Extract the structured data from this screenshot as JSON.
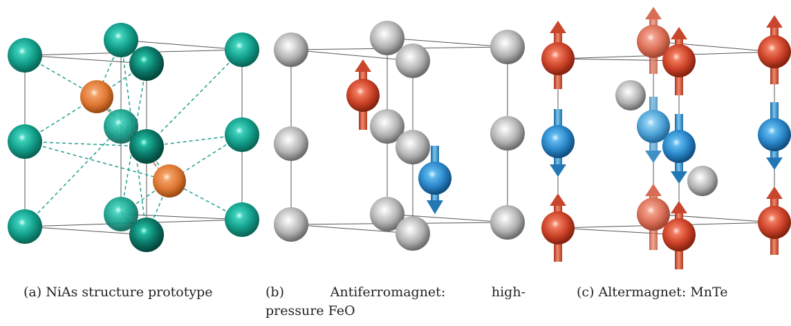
{
  "panels": [
    {
      "id": "a",
      "caption": "(a) NiAs structure prototype"
    },
    {
      "id": "b",
      "caption_parts": [
        "(b)",
        "Antiferromagnet:",
        "high-"
      ],
      "caption_line2": "pressure FeO"
    },
    {
      "id": "c",
      "caption": "(c) Altermagnet: MnTe"
    }
  ],
  "colors": {
    "ni_teal": "#0f9d8a",
    "ni_teal_dark": "#0b6e5f",
    "as_orange": "#e2782f",
    "fe_gray": "#a8a8a8",
    "spin_up_red": "#d24a2e",
    "spin_down_blue": "#2a86c8"
  }
}
